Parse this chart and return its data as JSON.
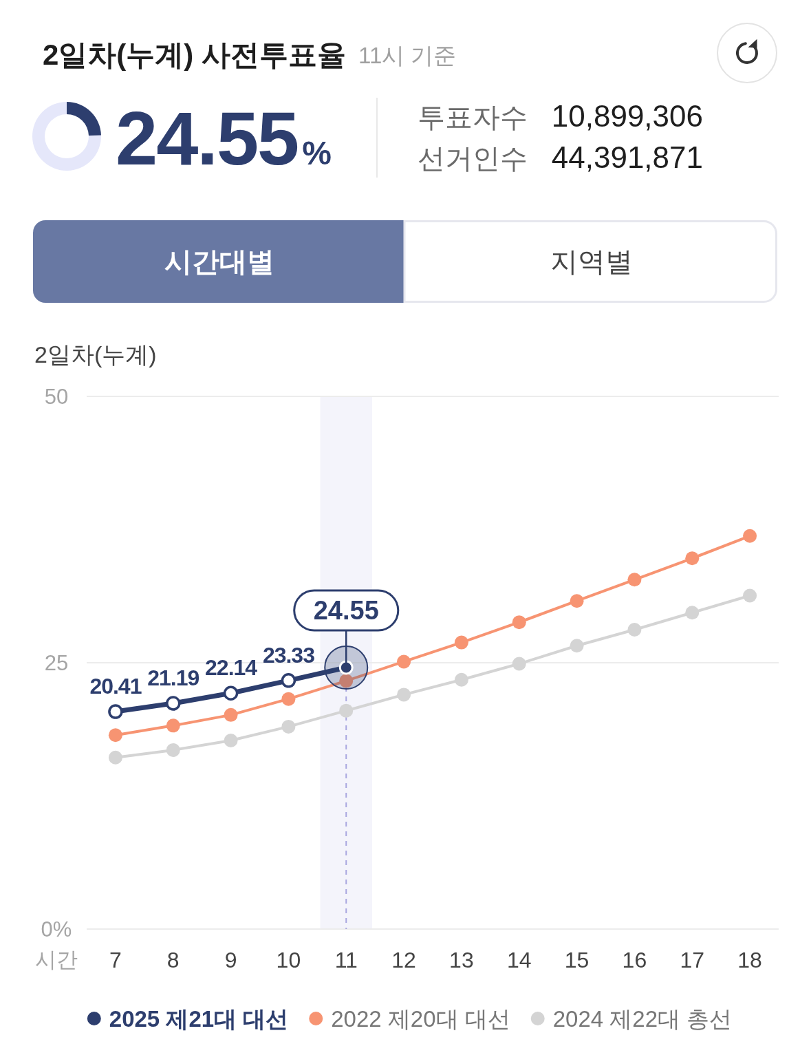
{
  "chart_data": [
    {
      "type": "donut",
      "title": "2일차(누계) 사전투표율",
      "subtitle": "11시 기준",
      "categories": [
        null,
        null
      ],
      "values": [
        24.55,
        75.45
      ],
      "colors": [
        "#2d3e6e",
        "#e5e7fa"
      ],
      "value_labels": [
        "24.55%",
        null
      ],
      "annotations": [
        "투표자수",
        "10,899,306",
        "선거인수",
        "44,391,871",
        "시간대별",
        "지역별"
      ]
    },
    {
      "type": "line",
      "title": "2일차(누계)",
      "xlabel": "시간",
      "x": [
        7,
        8,
        9,
        10,
        11,
        12,
        13,
        14,
        15,
        16,
        17,
        18
      ],
      "xlim": [
        6.5,
        18.5
      ],
      "xticks": [
        7,
        8,
        9,
        10,
        11,
        12,
        13,
        14,
        15,
        16,
        17,
        18
      ],
      "ylim": [
        0,
        50
      ],
      "yticks": [
        {
          "value": 0,
          "label": "0%"
        },
        25,
        50
      ],
      "grid": "y",
      "legend": "bottom",
      "marker": "circle",
      "series": [
        {
          "name": "2025 제21대 대선",
          "color": "#2d3e6e",
          "values": [
            20.41,
            21.19,
            22.14,
            23.33,
            24.55,
            null,
            null,
            null,
            null,
            null,
            null,
            null
          ],
          "value_labels": [
            "20.41",
            "21.19",
            "22.14",
            "23.33",
            null,
            null,
            null,
            null,
            null,
            null,
            null,
            null
          ]
        },
        {
          "name": "2022 제20대 대선",
          "color": "#f79472",
          "values": [
            18.2,
            19.1,
            20.1,
            21.6,
            23.3,
            25.1,
            26.9,
            28.8,
            30.8,
            32.8,
            34.8,
            36.9
          ]
        },
        {
          "name": "2024 제22대 총선",
          "color": "#d4d4d4",
          "values": [
            16.1,
            16.8,
            17.7,
            19.0,
            20.5,
            22.0,
            23.4,
            24.9,
            26.6,
            28.1,
            29.7,
            31.3
          ]
        }
      ],
      "bands": [
        {
          "axis": "x",
          "from": 10.55,
          "to": 11.45,
          "color": "#f4f4fb"
        }
      ],
      "ref_lines": [
        {
          "axis": "x",
          "value": 11,
          "line_style": "dashed",
          "color": "#a9a6e0"
        }
      ],
      "annotations": [
        {
          "text": "24.55",
          "x": 11,
          "y": 24.55
        }
      ]
    }
  ]
}
